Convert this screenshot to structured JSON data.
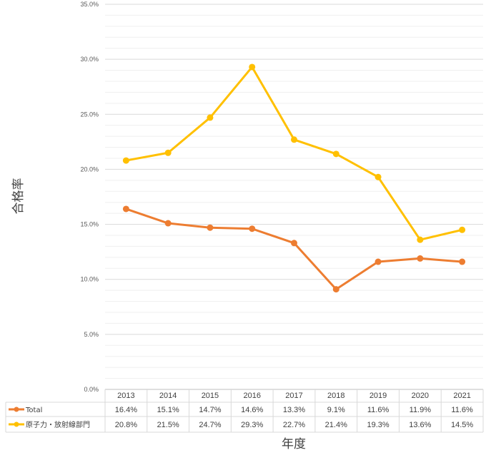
{
  "chart_data": {
    "type": "line",
    "title": "",
    "xlabel": "年度",
    "ylabel": "合格率",
    "ylim": [
      0,
      35
    ],
    "y_ticks": [
      "0.0%",
      "5.0%",
      "10.0%",
      "15.0%",
      "20.0%",
      "25.0%",
      "30.0%",
      "35.0%"
    ],
    "grid": true,
    "legend": "data-table",
    "categories": [
      "2013",
      "2014",
      "2015",
      "2016",
      "2017",
      "2018",
      "2019",
      "2020",
      "2021"
    ],
    "series": [
      {
        "name": "Total",
        "color": "#ED7D31",
        "values": [
          16.4,
          15.1,
          14.7,
          14.6,
          13.3,
          9.1,
          11.6,
          11.9,
          11.6
        ],
        "labels": [
          "16.4%",
          "15.1%",
          "14.7%",
          "14.6%",
          "13.3%",
          "9.1%",
          "11.6%",
          "11.9%",
          "11.6%"
        ]
      },
      {
        "name": "原子力・放射線部門",
        "color": "#FFC000",
        "values": [
          20.8,
          21.5,
          24.7,
          29.3,
          22.7,
          21.4,
          19.3,
          13.6,
          14.5
        ],
        "labels": [
          "20.8%",
          "21.5%",
          "24.7%",
          "29.3%",
          "22.7%",
          "21.4%",
          "19.3%",
          "13.6%",
          "14.5%"
        ]
      }
    ]
  }
}
